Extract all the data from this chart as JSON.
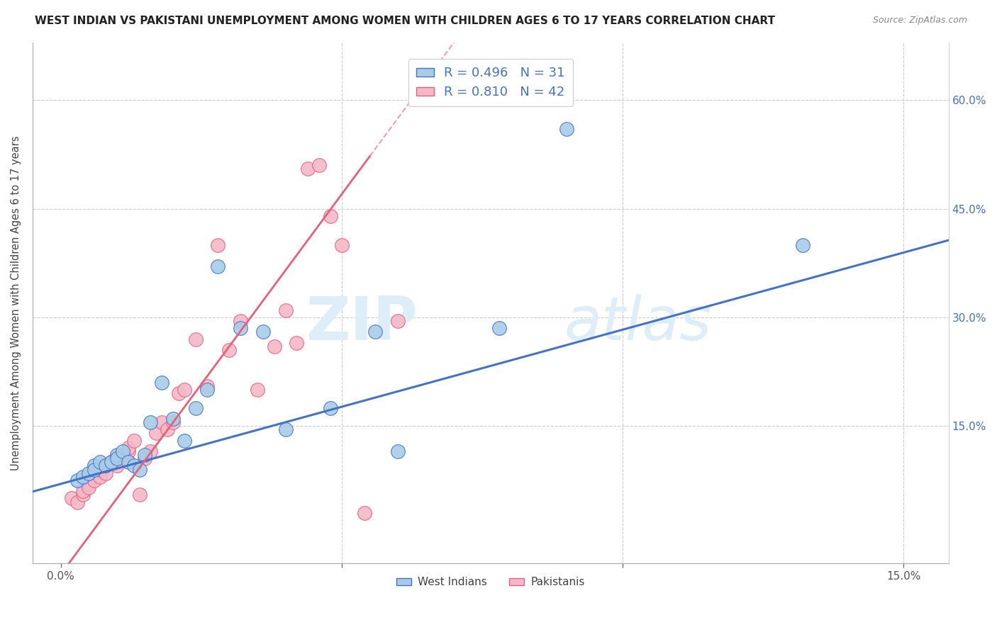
{
  "title": "WEST INDIAN VS PAKISTANI UNEMPLOYMENT AMONG WOMEN WITH CHILDREN AGES 6 TO 17 YEARS CORRELATION CHART",
  "source": "Source: ZipAtlas.com",
  "ylabel": "Unemployment Among Women with Children Ages 6 to 17 years",
  "y_tick_labels_right": [
    "15.0%",
    "30.0%",
    "45.0%",
    "60.0%"
  ],
  "y_ticks_right": [
    0.15,
    0.3,
    0.45,
    0.6
  ],
  "xlim": [
    -0.005,
    0.158
  ],
  "ylim": [
    -0.04,
    0.68
  ],
  "legend_R1": "0.496",
  "legend_N1": "31",
  "legend_R2": "0.810",
  "legend_N2": "42",
  "legend_label1": "West Indians",
  "legend_label2": "Pakistanis",
  "color_blue": "#a8cce8",
  "color_pink": "#f5b8c8",
  "color_blue_line": "#4472c4",
  "color_pink_line": "#e8607a",
  "color_blue_dark": "#4472c4",
  "color_pink_dark": "#e8607a",
  "watermark_zip": "ZIP",
  "watermark_atlas": "atlas",
  "watermark_color": "#ddeef8",
  "west_indian_x": [
    0.003,
    0.004,
    0.005,
    0.006,
    0.006,
    0.007,
    0.008,
    0.009,
    0.01,
    0.01,
    0.011,
    0.012,
    0.013,
    0.014,
    0.015,
    0.016,
    0.018,
    0.02,
    0.022,
    0.024,
    0.026,
    0.028,
    0.032,
    0.036,
    0.04,
    0.048,
    0.056,
    0.06,
    0.078,
    0.09,
    0.132
  ],
  "west_indian_y": [
    0.075,
    0.08,
    0.085,
    0.095,
    0.09,
    0.1,
    0.095,
    0.1,
    0.11,
    0.105,
    0.115,
    0.1,
    0.095,
    0.09,
    0.11,
    0.155,
    0.21,
    0.16,
    0.13,
    0.175,
    0.2,
    0.37,
    0.285,
    0.28,
    0.145,
    0.175,
    0.28,
    0.115,
    0.285,
    0.56,
    0.4
  ],
  "pakistani_x": [
    0.002,
    0.003,
    0.004,
    0.004,
    0.005,
    0.005,
    0.006,
    0.007,
    0.007,
    0.008,
    0.008,
    0.009,
    0.01,
    0.01,
    0.011,
    0.012,
    0.012,
    0.013,
    0.014,
    0.015,
    0.016,
    0.017,
    0.018,
    0.019,
    0.02,
    0.021,
    0.022,
    0.024,
    0.026,
    0.028,
    0.03,
    0.032,
    0.035,
    0.038,
    0.04,
    0.042,
    0.044,
    0.046,
    0.048,
    0.05,
    0.054,
    0.06
  ],
  "pakistani_y": [
    0.05,
    0.045,
    0.055,
    0.06,
    0.07,
    0.065,
    0.075,
    0.08,
    0.09,
    0.085,
    0.095,
    0.1,
    0.105,
    0.095,
    0.11,
    0.115,
    0.12,
    0.13,
    0.055,
    0.105,
    0.115,
    0.14,
    0.155,
    0.145,
    0.155,
    0.195,
    0.2,
    0.27,
    0.205,
    0.4,
    0.255,
    0.295,
    0.2,
    0.26,
    0.31,
    0.265,
    0.505,
    0.51,
    0.44,
    0.4,
    0.03,
    0.295
  ]
}
